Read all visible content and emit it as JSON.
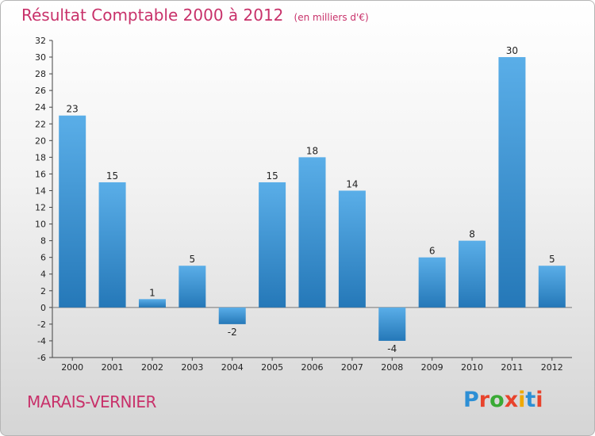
{
  "title": "Résultat Comptable 2000 à 2012",
  "subtitle": "(en milliers d'€)",
  "place": "MARAIS-VERNIER",
  "logo": {
    "letters": [
      "P",
      "r",
      "o",
      "x",
      "i",
      "t",
      "i"
    ],
    "colors": [
      "#2d8fd5",
      "#e8432c",
      "#3aaa35",
      "#e8432c",
      "#f0a900",
      "#2d8fd5",
      "#e8432c"
    ]
  },
  "colors": {
    "bar_top": "#5aaee8",
    "bar_bottom": "#2578b8",
    "text": "#222222",
    "accent": "#c8316a"
  },
  "chart_data": {
    "type": "bar",
    "categories": [
      "2000",
      "2001",
      "2002",
      "2003",
      "2004",
      "2005",
      "2006",
      "2007",
      "2008",
      "2009",
      "2010",
      "2011",
      "2012"
    ],
    "values": [
      23,
      15,
      1,
      5,
      -2,
      15,
      18,
      14,
      -4,
      6,
      8,
      30,
      5
    ],
    "ylim": [
      -6,
      32
    ],
    "yticks": [
      -6,
      -4,
      -2,
      0,
      2,
      4,
      6,
      8,
      10,
      12,
      14,
      16,
      18,
      20,
      22,
      24,
      26,
      28,
      30,
      32
    ],
    "grid": false,
    "legend": "none"
  }
}
